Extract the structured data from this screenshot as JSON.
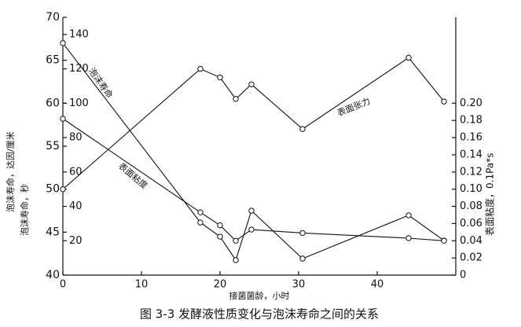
{
  "chart_data": {
    "type": "line",
    "caption": "图 3-3 发酵液性质变化与泡沫寿命之间的关系",
    "x_label": "接菌菌龄，小时",
    "y_label": "泡沫寿命，达因/厘米",
    "y3_label": "泡沫寿命，秒",
    "y2_label": "表面粘度，0.1Pa*s",
    "xlim": [
      0,
      50
    ],
    "xticks": [
      0,
      10,
      20,
      30,
      40
    ],
    "ylim": [
      40,
      70
    ],
    "yticks": [
      40,
      45,
      50,
      55,
      60,
      65,
      70
    ],
    "y3lim": [
      0,
      150
    ],
    "y3ticks": [
      20,
      40,
      60,
      80,
      100,
      120,
      140
    ],
    "y2lim": [
      0,
      0.3
    ],
    "y2ticks": [
      0,
      0.02,
      0.04,
      0.06,
      0.08,
      {
        "value": 0.1,
        "label": "0.10"
      },
      0.12,
      0.14,
      0.16,
      0.18,
      {
        "value": 0.2,
        "label": "0.20"
      }
    ],
    "series": [
      {
        "name": "泡沫寿命",
        "color": "#111",
        "axis": "y3",
        "x": [
          0,
          17.5,
          20,
          22,
          24,
          30.5,
          44,
          48.5
        ],
        "values": [
          135,
          30.6,
          22.4,
          8.7,
          37.5,
          9.6,
          34.8,
          20.1
        ]
      },
      {
        "name": "表面粘度",
        "color": "#111",
        "axis": "y2",
        "x": [
          0,
          17.5,
          20,
          22,
          24,
          30.5,
          44,
          48.5
        ],
        "values": [
          0.182,
          0.073,
          0.058,
          0.04,
          0.053,
          0.049,
          0.043,
          0.04
        ]
      },
      {
        "name": "表面张力",
        "color": "#111",
        "axis": "y",
        "x": [
          0,
          17.5,
          20,
          22,
          24,
          30.5,
          44,
          48.5
        ],
        "values": [
          50,
          64,
          63,
          60.5,
          62.2,
          57,
          65.3,
          60.2
        ]
      }
    ]
  }
}
